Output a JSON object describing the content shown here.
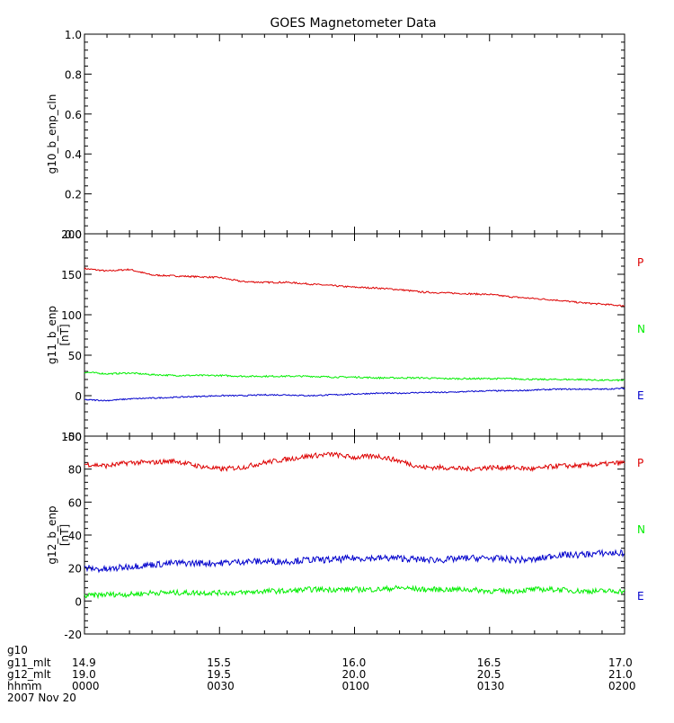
{
  "chart_data": [
    {
      "type": "line",
      "title": "GOES Magnetometer Data",
      "ylabel": "g10_b_enp_cln",
      "ylim": [
        0.0,
        1.0
      ],
      "yticks": [
        0.0,
        0.2,
        0.4,
        0.6,
        0.8,
        1.0
      ],
      "ytick_labels": [
        "0.0",
        "0.2",
        "0.4",
        "0.6",
        "0.8",
        "1.0"
      ],
      "series": []
    },
    {
      "type": "line",
      "ylabel": "g11_b_enp",
      "yunit": "[nT]",
      "ylim": [
        -50,
        200
      ],
      "yticks": [
        -50,
        0,
        50,
        100,
        150,
        200
      ],
      "ytick_labels": [
        "-50",
        "0",
        "50",
        "100",
        "150",
        "200"
      ],
      "x": [
        0,
        5,
        10,
        15,
        20,
        25,
        30,
        35,
        40,
        45,
        50,
        55,
        60,
        65,
        70,
        75,
        80,
        85,
        90,
        95,
        100,
        105,
        110,
        115,
        120
      ],
      "series": [
        {
          "name": "P",
          "color": "#dd0000",
          "noise": 1.0,
          "values": [
            157,
            154,
            156,
            149,
            148,
            147,
            146,
            141,
            140,
            140,
            138,
            136,
            134,
            133,
            131,
            128,
            127,
            126,
            125,
            122,
            120,
            118,
            115,
            113,
            111
          ]
        },
        {
          "name": "N",
          "color": "#00ee00",
          "noise": 1.0,
          "values": [
            29,
            27,
            28,
            26,
            25,
            25,
            25,
            24,
            24,
            24,
            24,
            23,
            23,
            22,
            22,
            22,
            21,
            21,
            21,
            21,
            20,
            20,
            20,
            19,
            19
          ]
        },
        {
          "name": "E",
          "color": "#0000cc",
          "noise": 0.8,
          "values": [
            -5,
            -6,
            -4,
            -3,
            -2,
            -1,
            0,
            0,
            1,
            1,
            0,
            1,
            2,
            3,
            3,
            4,
            4,
            5,
            6,
            6,
            7,
            8,
            8,
            8,
            9
          ]
        }
      ]
    },
    {
      "type": "line",
      "ylabel": "g12_b_enp",
      "yunit": "[nT]",
      "ylim": [
        -20,
        100
      ],
      "yticks": [
        -20,
        0,
        20,
        40,
        60,
        80,
        100
      ],
      "ytick_labels": [
        "-20",
        "0",
        "20",
        "40",
        "60",
        "80",
        "100"
      ],
      "x": [
        0,
        5,
        10,
        15,
        20,
        25,
        30,
        35,
        40,
        45,
        50,
        55,
        60,
        65,
        70,
        75,
        80,
        85,
        90,
        95,
        100,
        105,
        110,
        115,
        120
      ],
      "series": [
        {
          "name": "P",
          "color": "#dd0000",
          "noise": 1.5,
          "values": [
            83,
            82,
            84,
            84,
            85,
            82,
            80,
            81,
            84,
            86,
            88,
            89,
            87,
            88,
            85,
            81,
            81,
            80,
            81,
            81,
            80,
            82,
            82,
            83,
            84
          ]
        },
        {
          "name": "N",
          "color": "#00ee00",
          "noise": 1.6,
          "values": [
            3,
            4,
            4,
            5,
            5,
            5,
            5,
            5,
            6,
            6,
            7,
            7,
            7,
            7,
            8,
            7,
            7,
            7,
            6,
            6,
            7,
            7,
            6,
            6,
            6
          ]
        },
        {
          "name": "E",
          "color": "#0000cc",
          "noise": 2.0,
          "values": [
            20,
            19,
            21,
            22,
            23,
            23,
            23,
            24,
            24,
            24,
            25,
            25,
            26,
            26,
            26,
            25,
            25,
            26,
            26,
            25,
            25,
            28,
            28,
            29,
            29
          ]
        }
      ]
    }
  ],
  "x_axis": {
    "xlim": [
      0,
      120
    ],
    "major_ticks": [
      0,
      30,
      60,
      90,
      120
    ],
    "minor_step": 5,
    "rows": [
      {
        "label": "g10",
        "values": [
          "",
          "",
          "",
          "",
          ""
        ]
      },
      {
        "label": "g11_mlt",
        "values": [
          "14.9",
          "15.5",
          "16.0",
          "16.5",
          "17.0"
        ]
      },
      {
        "label": "g12_mlt",
        "values": [
          "19.0",
          "19.5",
          "20.0",
          "20.5",
          "21.0"
        ]
      },
      {
        "label": "hhmm",
        "values": [
          "0000",
          "0030",
          "0100",
          "0130",
          "0200"
        ]
      }
    ],
    "date": "2007 Nov 20"
  }
}
